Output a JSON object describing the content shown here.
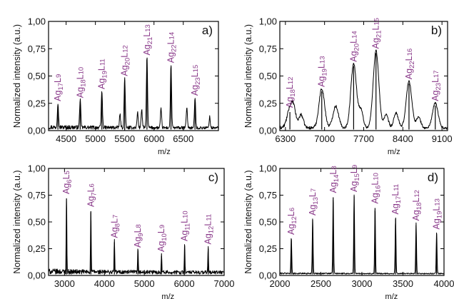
{
  "chart_data": [
    {
      "panel": "a)",
      "type": "line",
      "xlabel": "m/z",
      "ylabel": "Normalized intensity (a.u.)",
      "xlim": [
        4200,
        7100
      ],
      "ylim": [
        0,
        1.0
      ],
      "xticks": [
        4500,
        5000,
        5500,
        6000,
        6500
      ],
      "yticks": [
        0.0,
        0.25,
        0.5,
        0.75,
        1.0
      ],
      "ytick_labels": [
        "0,00",
        "0,25",
        "0,50",
        "0,75",
        "1,00"
      ],
      "noise": 0.04,
      "peaks": [
        {
          "x": 4360,
          "y": 0.23,
          "w": 10,
          "ag": "17",
          "l": "9"
        },
        {
          "x": 4740,
          "y": 0.26,
          "w": 10,
          "ag": "18",
          "l": "10"
        },
        {
          "x": 5110,
          "y": 0.34,
          "w": 10,
          "ag": "19",
          "l": "11"
        },
        {
          "x": 5500,
          "y": 0.46,
          "w": 10,
          "ag": "20",
          "l": "12"
        },
        {
          "x": 5880,
          "y": 0.65,
          "w": 10,
          "ag": "21",
          "l": "13"
        },
        {
          "x": 6290,
          "y": 0.58,
          "w": 10,
          "ag": "22",
          "l": "14"
        },
        {
          "x": 6700,
          "y": 0.28,
          "w": 10,
          "ag": "23",
          "l": "15"
        }
      ],
      "minor_peaks": [
        {
          "x": 5420,
          "y": 0.12,
          "w": 10
        },
        {
          "x": 5720,
          "y": 0.14,
          "w": 10
        },
        {
          "x": 5790,
          "y": 0.17,
          "w": 10
        },
        {
          "x": 6120,
          "y": 0.17,
          "w": 10
        },
        {
          "x": 6560,
          "y": 0.19,
          "w": 10
        },
        {
          "x": 6950,
          "y": 0.1,
          "w": 10
        }
      ]
    },
    {
      "panel": "b)",
      "type": "line",
      "xlabel": "m/z",
      "ylabel": "Normalized intensity (a.u.)",
      "xlim": [
        6200,
        9200
      ],
      "ylim": [
        0,
        1.0
      ],
      "xticks": [
        6300,
        7000,
        7700,
        8400,
        9100
      ],
      "yticks": [
        0.0,
        0.25,
        0.5,
        0.75,
        1.0
      ],
      "ytick_labels": [
        "0,00",
        "0,25",
        "0,50",
        "0,75",
        "1,00"
      ],
      "noise": 0.03,
      "peaks": [
        {
          "x": 6380,
          "y": 0.17,
          "w": 50,
          "ag": "18",
          "l": "12"
        },
        {
          "x": 6950,
          "y": 0.36,
          "w": 50,
          "ag": "19",
          "l": "13"
        },
        {
          "x": 7520,
          "y": 0.59,
          "w": 50,
          "ag": "20",
          "l": "14"
        },
        {
          "x": 7920,
          "y": 0.71,
          "w": 50,
          "ag": "21",
          "l": "15"
        },
        {
          "x": 8510,
          "y": 0.43,
          "w": 50,
          "ag": "22",
          "l": "16"
        },
        {
          "x": 8980,
          "y": 0.23,
          "w": 50,
          "ag": "23",
          "l": "17"
        }
      ],
      "minor_peaks": [
        {
          "x": 6450,
          "y": 0.15,
          "w": 40
        },
        {
          "x": 6580,
          "y": 0.12,
          "w": 40
        },
        {
          "x": 7200,
          "y": 0.2,
          "w": 50
        },
        {
          "x": 7650,
          "y": 0.16,
          "w": 40
        },
        {
          "x": 8100,
          "y": 0.12,
          "w": 40
        },
        {
          "x": 8280,
          "y": 0.14,
          "w": 40
        },
        {
          "x": 8680,
          "y": 0.1,
          "w": 40
        }
      ]
    },
    {
      "panel": "c)",
      "type": "line",
      "xlabel": "m/z",
      "ylabel": "Normalized intensity (a.u.)",
      "xlim": [
        2600,
        7000
      ],
      "ylim": [
        0,
        1.0
      ],
      "xticks": [
        3000,
        4000,
        5000,
        6000,
        7000
      ],
      "yticks": [
        0.0,
        0.25,
        0.5,
        0.75,
        1.0
      ],
      "ytick_labels": [
        "0,00",
        "0,25",
        "0,50",
        "0,75",
        "1,00"
      ],
      "noise": 0.05,
      "peaks": [
        {
          "x": 3050,
          "y": 0.72,
          "w": 8,
          "ag": "6",
          "l": "5"
        },
        {
          "x": 3660,
          "y": 0.6,
          "w": 8,
          "ag": "7",
          "l": "6"
        },
        {
          "x": 4250,
          "y": 0.31,
          "w": 8,
          "ag": "8",
          "l": "7"
        },
        {
          "x": 4840,
          "y": 0.22,
          "w": 8,
          "ag": "9",
          "l": "8"
        },
        {
          "x": 5430,
          "y": 0.18,
          "w": 8,
          "ag": "10",
          "l": "9"
        },
        {
          "x": 6010,
          "y": 0.28,
          "w": 8,
          "ag": "11",
          "l": "10"
        },
        {
          "x": 6600,
          "y": 0.25,
          "w": 8,
          "ag": "12",
          "l": "11"
        }
      ],
      "minor_peaks": []
    },
    {
      "panel": "d)",
      "type": "line",
      "xlabel": "m/z",
      "ylabel": "Normalized intensity (a.u.)",
      "xlim": [
        2000,
        4000
      ],
      "ylim": [
        0,
        1.0
      ],
      "xticks": [
        2000,
        2500,
        3000,
        3500,
        4000
      ],
      "yticks": [
        0.0,
        0.25,
        0.5,
        0.75,
        1.0
      ],
      "ytick_labels": [
        "0,00",
        "0,25",
        "0,50",
        "0,75",
        "1,00"
      ],
      "noise": 0.015,
      "peaks": [
        {
          "x": 2140,
          "y": 0.34,
          "w": 5,
          "ag": "12",
          "l": "6"
        },
        {
          "x": 2400,
          "y": 0.52,
          "w": 5,
          "ag": "13",
          "l": "7"
        },
        {
          "x": 2650,
          "y": 0.73,
          "w": 5,
          "ag": "14",
          "l": "8"
        },
        {
          "x": 2905,
          "y": 0.74,
          "w": 5,
          "ag": "15",
          "l": "9"
        },
        {
          "x": 3160,
          "y": 0.63,
          "w": 5,
          "ag": "16",
          "l": "10"
        },
        {
          "x": 3410,
          "y": 0.53,
          "w": 5,
          "ag": "17",
          "l": "11"
        },
        {
          "x": 3660,
          "y": 0.47,
          "w": 5,
          "ag": "18",
          "l": "12"
        },
        {
          "x": 3910,
          "y": 0.39,
          "w": 5,
          "ag": "19",
          "l": "13"
        }
      ],
      "minor_peaks": []
    }
  ]
}
